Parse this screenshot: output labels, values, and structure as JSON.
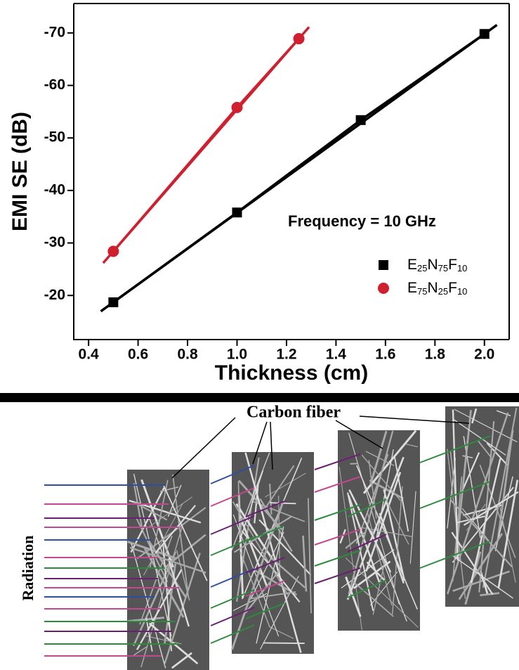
{
  "chart_data": {
    "type": "line",
    "x_label": "Thickness (cm)",
    "y_label": "EMI SE (dB)",
    "annotation": "Frequency = 10 GHz",
    "xlim": [
      0.34,
      2.1
    ],
    "xticks": [
      0.4,
      0.6,
      0.8,
      {
        "value": 1,
        "label": "1.0"
      },
      1.2,
      1.4,
      1.6,
      1.8,
      {
        "value": 2,
        "label": "2.0"
      }
    ],
    "ylim": [
      -11.6,
      -75.6
    ],
    "yticks": [
      -20,
      -30,
      -40,
      -50,
      -60,
      -70
    ],
    "series": [
      {
        "name": "E25N75F10",
        "color": "#000000",
        "marker": "square",
        "x": [
          0.5,
          1,
          1.5,
          2
        ],
        "values": [
          -18.7,
          -35.8,
          -53.4,
          -69.8
        ]
      },
      {
        "name": "E75N25F10",
        "color": "#d01f2e",
        "marker": "circle",
        "x": [
          0.5,
          1,
          1.25
        ],
        "values": [
          -28.4,
          -55.8,
          -68.9
        ]
      }
    ]
  },
  "diagram": {
    "fiber_label": "Carbon fiber",
    "radiation_label": "Radiation"
  }
}
